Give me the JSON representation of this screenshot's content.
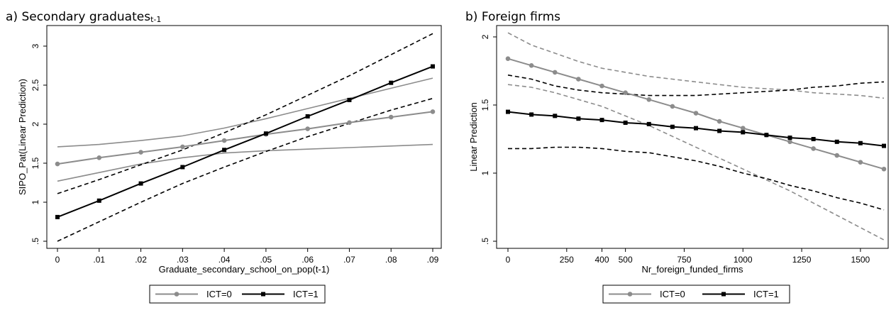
{
  "chart_data": [
    {
      "type": "line",
      "title": "a) Secondary graduates",
      "title_subscript": "t-1",
      "xlabel": "Graduate_secondary_school_on_pop(t-1)",
      "ylabel": "SIPO_Pat(Linear Prediction)",
      "xlim": [
        0,
        0.09
      ],
      "ylim": [
        0.5,
        3.0
      ],
      "x_ticks": [
        0,
        0.01,
        0.02,
        0.03,
        0.04,
        0.05,
        0.06,
        0.07,
        0.08,
        0.09
      ],
      "x_tick_labels": [
        "0",
        ".01",
        ".02",
        ".03",
        ".04",
        ".05",
        ".06",
        ".07",
        ".08",
        ".09"
      ],
      "y_ticks": [
        0.5,
        1,
        1.5,
        2,
        2.5,
        3
      ],
      "y_tick_labels": [
        ".5",
        "1",
        "1.5",
        "2",
        "2.5",
        "3"
      ],
      "x": [
        0,
        0.01,
        0.02,
        0.03,
        0.04,
        0.05,
        0.06,
        0.07,
        0.08,
        0.09
      ],
      "legend_position": "bottom",
      "series": [
        {
          "name": "ICT=0",
          "color": "#8c8c8c",
          "marker": "circle",
          "values": [
            1.49,
            1.57,
            1.64,
            1.71,
            1.79,
            1.87,
            1.94,
            2.02,
            2.09,
            2.16
          ],
          "ci_lower": [
            1.27,
            1.38,
            1.49,
            1.57,
            1.63,
            1.66,
            1.68,
            1.7,
            1.72,
            1.74
          ],
          "ci_upper": [
            1.71,
            1.74,
            1.79,
            1.85,
            1.95,
            2.07,
            2.2,
            2.33,
            2.46,
            2.59
          ]
        },
        {
          "name": "ICT=1",
          "color": "#000000",
          "marker": "square",
          "values": [
            0.81,
            1.02,
            1.24,
            1.45,
            1.67,
            1.88,
            2.1,
            2.31,
            2.53,
            2.74
          ],
          "ci_lower": [
            0.5,
            0.75,
            1.0,
            1.24,
            1.45,
            1.65,
            1.84,
            2.01,
            2.18,
            2.33
          ],
          "ci_upper": [
            1.11,
            1.29,
            1.48,
            1.67,
            1.89,
            2.12,
            2.37,
            2.62,
            2.89,
            3.16
          ]
        }
      ]
    },
    {
      "type": "line",
      "title": "b) Foreign firms",
      "xlabel": "Nr_foreign_funded_firms",
      "ylabel": "Linear Prediction",
      "xlim": [
        0,
        1600
      ],
      "ylim": [
        0.5,
        2.0
      ],
      "x_ticks": [
        0,
        250,
        400,
        500,
        750,
        1000,
        1250,
        1500
      ],
      "x_tick_labels": [
        "0",
        "250",
        "400",
        "500",
        "750",
        "1000",
        "1250",
        "1500"
      ],
      "y_ticks": [
        0.5,
        1,
        1.5,
        2
      ],
      "y_tick_labels": [
        ".5",
        "1",
        "1.5",
        "2"
      ],
      "x": [
        0,
        100,
        200,
        300,
        400,
        500,
        600,
        700,
        800,
        900,
        1000,
        1100,
        1200,
        1300,
        1400,
        1500,
        1600
      ],
      "legend_position": "bottom",
      "series": [
        {
          "name": "ICT=0",
          "color": "#8c8c8c",
          "marker": "circle",
          "values": [
            1.84,
            1.79,
            1.74,
            1.69,
            1.64,
            1.59,
            1.54,
            1.49,
            1.44,
            1.38,
            1.33,
            1.28,
            1.23,
            1.18,
            1.13,
            1.08,
            1.03
          ],
          "ci_lower": [
            1.65,
            1.63,
            1.59,
            1.54,
            1.49,
            1.42,
            1.35,
            1.27,
            1.19,
            1.11,
            1.03,
            0.95,
            0.87,
            0.78,
            0.69,
            0.6,
            0.51
          ],
          "ci_upper": [
            2.03,
            1.94,
            1.88,
            1.82,
            1.77,
            1.74,
            1.71,
            1.69,
            1.67,
            1.65,
            1.63,
            1.62,
            1.61,
            1.59,
            1.58,
            1.57,
            1.55
          ]
        },
        {
          "name": "ICT=1",
          "color": "#000000",
          "marker": "square",
          "values": [
            1.45,
            1.43,
            1.42,
            1.4,
            1.39,
            1.37,
            1.36,
            1.34,
            1.33,
            1.31,
            1.3,
            1.28,
            1.26,
            1.25,
            1.23,
            1.22,
            1.2
          ],
          "ci_lower": [
            1.18,
            1.18,
            1.19,
            1.19,
            1.18,
            1.16,
            1.15,
            1.12,
            1.09,
            1.05,
            1.0,
            0.96,
            0.91,
            0.87,
            0.82,
            0.78,
            0.73
          ],
          "ci_upper": [
            1.72,
            1.69,
            1.64,
            1.61,
            1.59,
            1.58,
            1.57,
            1.57,
            1.57,
            1.58,
            1.59,
            1.6,
            1.61,
            1.63,
            1.64,
            1.66,
            1.67
          ]
        }
      ]
    }
  ]
}
